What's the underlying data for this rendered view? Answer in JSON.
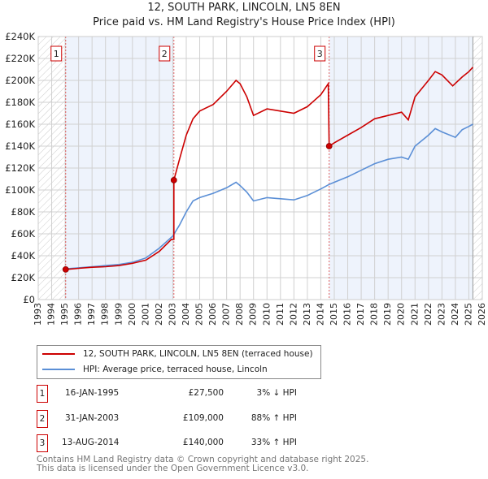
{
  "title": "12, SOUTH PARK, LINCOLN, LN5 8EN",
  "subtitle": "Price paid vs. HM Land Registry's House Price Index (HPI)",
  "chart_data": {
    "type": "line",
    "xlim": [
      1993,
      2026
    ],
    "ylim": [
      0,
      240000
    ],
    "x_ticks": [
      1993,
      1994,
      1995,
      1996,
      1997,
      1998,
      1999,
      2000,
      2001,
      2002,
      2003,
      2004,
      2005,
      2006,
      2007,
      2008,
      2009,
      2010,
      2011,
      2012,
      2013,
      2014,
      2015,
      2016,
      2017,
      2018,
      2019,
      2020,
      2021,
      2022,
      2023,
      2024,
      2025,
      2026
    ],
    "y_ticks": [
      0,
      20000,
      40000,
      60000,
      80000,
      100000,
      120000,
      140000,
      160000,
      180000,
      200000,
      220000,
      240000
    ],
    "y_tick_labels": [
      "£0",
      "£20K",
      "£40K",
      "£60K",
      "£80K",
      "£100K",
      "£120K",
      "£140K",
      "£160K",
      "£180K",
      "£200K",
      "£220K",
      "£240K"
    ],
    "grid": true,
    "series": [
      {
        "name": "12, SOUTH PARK, LINCOLN, LN5 8EN (terraced house)",
        "color": "#cc0000",
        "x": [
          1995.04,
          1996,
          1997,
          1998,
          1999,
          2000,
          2001,
          2002,
          2002.9,
          2003.08,
          2003.08,
          2003.5,
          2004,
          2004.5,
          2005,
          2006,
          2007,
          2007.7,
          2008,
          2008.5,
          2009,
          2010,
          2011,
          2012,
          2013,
          2014,
          2014.55,
          2014.62,
          2015,
          2016,
          2017,
          2018,
          2019,
          2020,
          2020.5,
          2021,
          2022,
          2022.5,
          2023,
          2023.8,
          2024.5,
          2025,
          2025.3
        ],
        "y": [
          27500,
          28500,
          29500,
          30000,
          31000,
          33000,
          36000,
          44000,
          55000,
          55000,
          109000,
          128000,
          150000,
          165000,
          172000,
          178000,
          190000,
          200000,
          197000,
          185000,
          168000,
          174000,
          172000,
          170000,
          176000,
          187000,
          197000,
          140000,
          143000,
          150000,
          157000,
          165000,
          168000,
          171000,
          164000,
          185000,
          200000,
          208000,
          205000,
          195000,
          203000,
          208000,
          212000
        ]
      },
      {
        "name": "HPI: Average price, terraced house, Lincoln",
        "color": "#5b8fd6",
        "x": [
          1995,
          1996,
          1997,
          1998,
          1999,
          2000,
          2001,
          2002,
          2003,
          2003.5,
          2004,
          2004.5,
          2005,
          2006,
          2007,
          2007.7,
          2008,
          2008.5,
          2009,
          2010,
          2011,
          2012,
          2013,
          2014,
          2014.6,
          2015,
          2016,
          2017,
          2018,
          2019,
          2020,
          2020.5,
          2021,
          2022,
          2022.5,
          2023,
          2024,
          2024.5,
          2025,
          2025.3
        ],
        "y": [
          28000,
          29000,
          30000,
          31000,
          32000,
          34000,
          38000,
          47000,
          58000,
          68000,
          80000,
          90000,
          93000,
          97000,
          102000,
          107000,
          104000,
          98000,
          90000,
          93000,
          92000,
          91000,
          95000,
          101000,
          105000,
          107000,
          112000,
          118000,
          124000,
          128000,
          130000,
          128000,
          140000,
          150000,
          156000,
          153000,
          148000,
          155000,
          158000,
          160000
        ]
      }
    ],
    "sales": [
      {
        "id": "1",
        "x": 1995.04,
        "y": 27500
      },
      {
        "id": "2",
        "x": 2003.08,
        "y": 109000
      },
      {
        "id": "3",
        "x": 2014.62,
        "y": 140000
      }
    ],
    "legend_position": "bottom"
  },
  "legend": {
    "red": "12, SOUTH PARK, LINCOLN, LN5 8EN (terraced house)",
    "blue": "HPI: Average price, terraced house, Lincoln"
  },
  "transactions": [
    {
      "id": "1",
      "date": "16-JAN-1995",
      "price": "£27,500",
      "hpi": "3% ↓ HPI"
    },
    {
      "id": "2",
      "date": "31-JAN-2003",
      "price": "£109,000",
      "hpi": "88% ↑ HPI"
    },
    {
      "id": "3",
      "date": "13-AUG-2014",
      "price": "£140,000",
      "hpi": "33% ↑ HPI"
    }
  ],
  "footer": {
    "line1": "Contains HM Land Registry data © Crown copyright and database right 2025.",
    "line2": "This data is licensed under the Open Government Licence v3.0."
  }
}
